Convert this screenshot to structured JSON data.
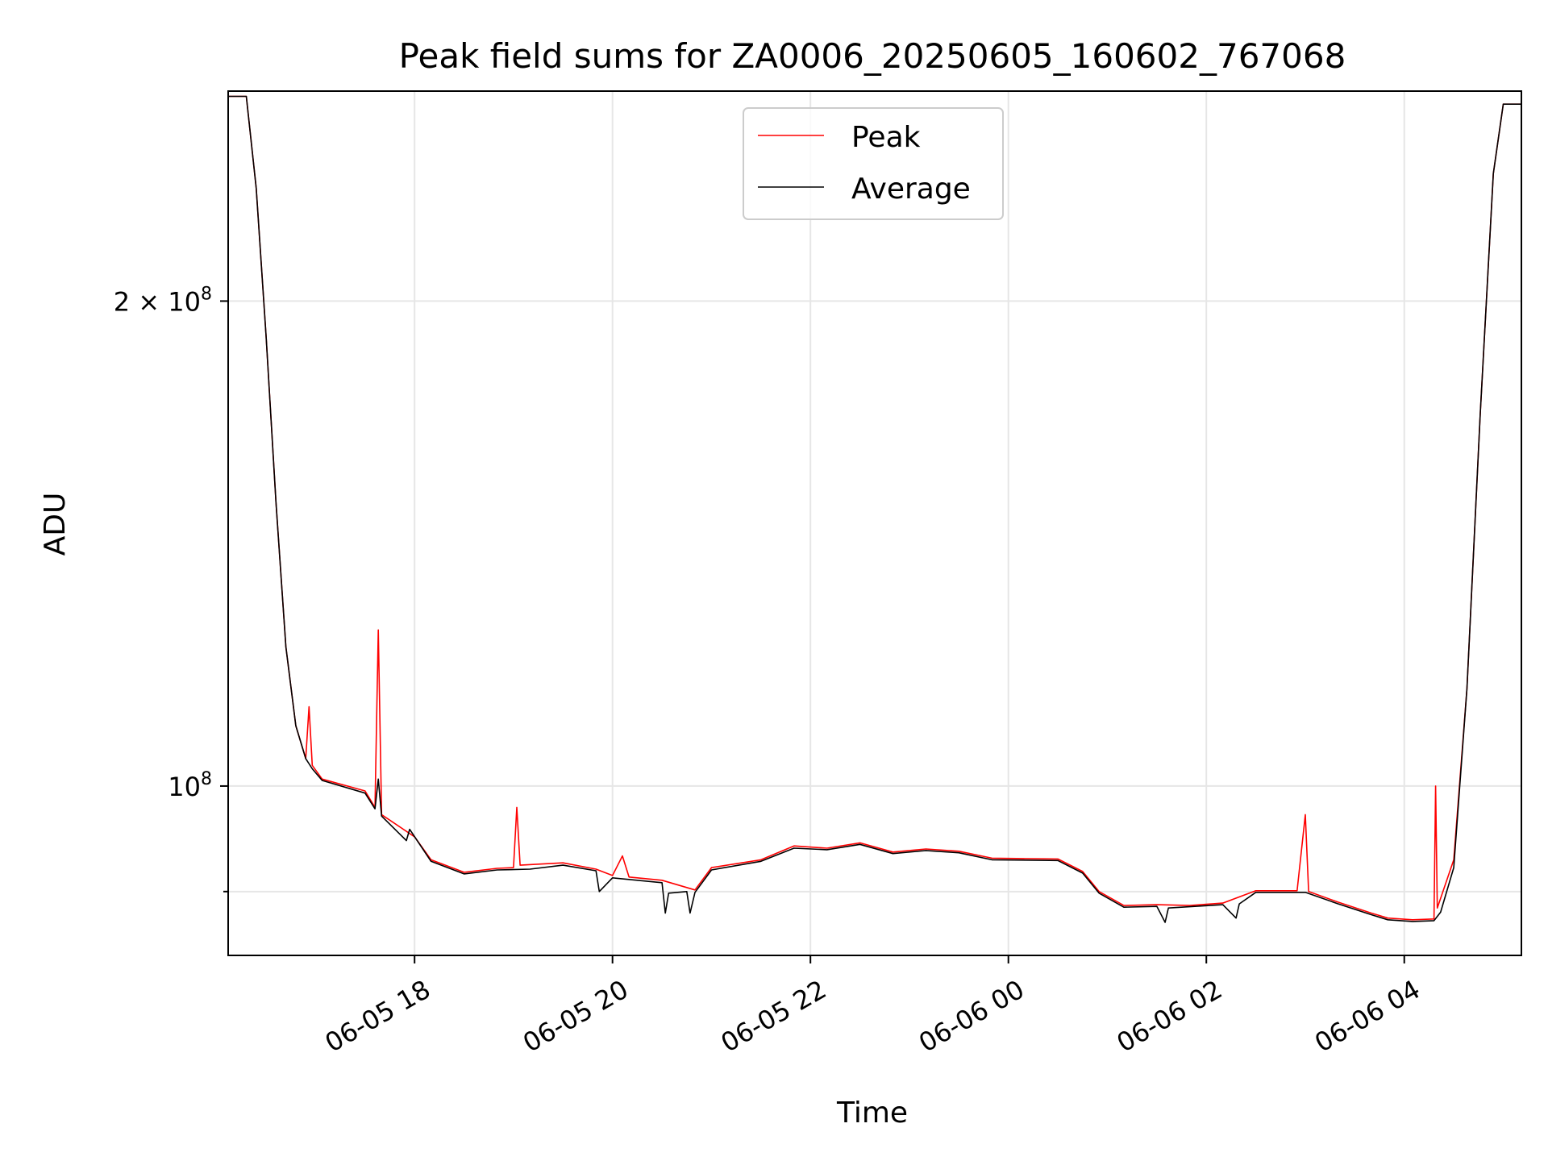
{
  "chart_data": {
    "type": "line",
    "title": "Peak field sums for ZA0006_20250605_160602_767068",
    "xlabel": "Time",
    "ylabel": "ADU",
    "y_scale": "log",
    "ylim": [
      78500000,
      270000000
    ],
    "xlim": [
      "2025-06-05 16:07",
      "2025-06-06 05:11"
    ],
    "grid": true,
    "legend_position": "upper-center",
    "x_ticks": [
      {
        "t": "2025-06-05 18:00",
        "label": "06-05 18"
      },
      {
        "t": "2025-06-05 20:00",
        "label": "06-05 20"
      },
      {
        "t": "2025-06-05 22:00",
        "label": "06-05 22"
      },
      {
        "t": "2025-06-06 00:00",
        "label": "06-06 00"
      },
      {
        "t": "2025-06-06 02:00",
        "label": "06-06 02"
      },
      {
        "t": "2025-06-06 04:00",
        "label": "06-06 04"
      }
    ],
    "y_ticks": [
      {
        "value": 200000000,
        "base": "2 × 10",
        "exp": "8"
      },
      {
        "value": 100000000,
        "base": "10",
        "exp": "8"
      },
      {
        "value": 86000000,
        "base": "",
        "exp": ""
      }
    ],
    "series": [
      {
        "name": "Peak",
        "color": "#ff0000",
        "points": [
          [
            "2025-06-05 16:07",
            268000000
          ],
          [
            "2025-06-05 16:18",
            268000000
          ],
          [
            "2025-06-05 16:24",
            235000000
          ],
          [
            "2025-06-05 16:30",
            190000000
          ],
          [
            "2025-06-05 16:36",
            150000000
          ],
          [
            "2025-06-05 16:42",
            122000000
          ],
          [
            "2025-06-05 16:48",
            109000000
          ],
          [
            "2025-06-05 16:54",
            104000000
          ],
          [
            "2025-06-05 16:56",
            112000000
          ],
          [
            "2025-06-05 16:58",
            103000000
          ],
          [
            "2025-06-05 17:04",
            101000000
          ],
          [
            "2025-06-05 17:30",
            99300000
          ],
          [
            "2025-06-05 17:36",
            97000000
          ],
          [
            "2025-06-05 17:38",
            125000000
          ],
          [
            "2025-06-05 17:40",
            96000000
          ],
          [
            "2025-06-05 18:00",
            93000000
          ],
          [
            "2025-06-05 18:10",
            90000000
          ],
          [
            "2025-06-05 18:30",
            88400000
          ],
          [
            "2025-06-05 18:50",
            88900000
          ],
          [
            "2025-06-05 19:00",
            89000000
          ],
          [
            "2025-06-05 19:02",
            97000000
          ],
          [
            "2025-06-05 19:04",
            89300000
          ],
          [
            "2025-06-05 19:30",
            89600000
          ],
          [
            "2025-06-05 19:50",
            88800000
          ],
          [
            "2025-06-05 20:00",
            88000000
          ],
          [
            "2025-06-05 20:06",
            90500000
          ],
          [
            "2025-06-05 20:10",
            87800000
          ],
          [
            "2025-06-05 20:30",
            87400000
          ],
          [
            "2025-06-05 20:50",
            86200000
          ],
          [
            "2025-06-05 21:00",
            89000000
          ],
          [
            "2025-06-05 21:30",
            90000000
          ],
          [
            "2025-06-05 21:50",
            91800000
          ],
          [
            "2025-06-05 22:10",
            91500000
          ],
          [
            "2025-06-05 22:30",
            92200000
          ],
          [
            "2025-06-05 22:50",
            91000000
          ],
          [
            "2025-06-05 23:10",
            91400000
          ],
          [
            "2025-06-05 23:30",
            91100000
          ],
          [
            "2025-06-05 23:50",
            90200000
          ],
          [
            "2025-06-06 00:30",
            90100000
          ],
          [
            "2025-06-06 00:45",
            88500000
          ],
          [
            "2025-06-06 00:55",
            86000000
          ],
          [
            "2025-06-06 01:10",
            84300000
          ],
          [
            "2025-06-06 01:30",
            84400000
          ],
          [
            "2025-06-06 01:50",
            84300000
          ],
          [
            "2025-06-06 02:10",
            84600000
          ],
          [
            "2025-06-06 02:30",
            86100000
          ],
          [
            "2025-06-06 02:55",
            86100000
          ],
          [
            "2025-06-06 03:00",
            96000000
          ],
          [
            "2025-06-06 03:02",
            86000000
          ],
          [
            "2025-06-06 03:20",
            84700000
          ],
          [
            "2025-06-06 03:40",
            83400000
          ],
          [
            "2025-06-06 03:50",
            82800000
          ],
          [
            "2025-06-06 04:05",
            82600000
          ],
          [
            "2025-06-06 04:18",
            82700000
          ],
          [
            "2025-06-06 04:19",
            100000000
          ],
          [
            "2025-06-06 04:20",
            84000000
          ],
          [
            "2025-06-06 04:30",
            90000000
          ],
          [
            "2025-06-06 04:38",
            115000000
          ],
          [
            "2025-06-06 04:46",
            170000000
          ],
          [
            "2025-06-06 04:54",
            240000000
          ],
          [
            "2025-06-06 05:00",
            265000000
          ],
          [
            "2025-06-06 05:11",
            265000000
          ]
        ]
      },
      {
        "name": "Average",
        "color": "#000000",
        "points": [
          [
            "2025-06-05 16:07",
            268000000
          ],
          [
            "2025-06-05 16:18",
            268000000
          ],
          [
            "2025-06-05 16:24",
            235000000
          ],
          [
            "2025-06-05 16:30",
            190000000
          ],
          [
            "2025-06-05 16:36",
            150000000
          ],
          [
            "2025-06-05 16:42",
            122000000
          ],
          [
            "2025-06-05 16:48",
            109000000
          ],
          [
            "2025-06-05 16:54",
            104000000
          ],
          [
            "2025-06-05 16:58",
            102500000
          ],
          [
            "2025-06-05 17:04",
            100800000
          ],
          [
            "2025-06-05 17:30",
            99000000
          ],
          [
            "2025-06-05 17:36",
            96800000
          ],
          [
            "2025-06-05 17:38",
            101000000
          ],
          [
            "2025-06-05 17:40",
            95800000
          ],
          [
            "2025-06-05 17:55",
            92500000
          ],
          [
            "2025-06-05 17:57",
            94000000
          ],
          [
            "2025-06-05 18:10",
            89800000
          ],
          [
            "2025-06-05 18:30",
            88200000
          ],
          [
            "2025-06-05 18:50",
            88700000
          ],
          [
            "2025-06-05 19:10",
            88800000
          ],
          [
            "2025-06-05 19:30",
            89300000
          ],
          [
            "2025-06-05 19:50",
            88600000
          ],
          [
            "2025-06-05 19:52",
            86000000
          ],
          [
            "2025-06-05 20:00",
            87700000
          ],
          [
            "2025-06-05 20:30",
            87100000
          ],
          [
            "2025-06-05 20:32",
            83400000
          ],
          [
            "2025-06-05 20:34",
            85800000
          ],
          [
            "2025-06-05 20:45",
            86000000
          ],
          [
            "2025-06-05 20:47",
            83400000
          ],
          [
            "2025-06-05 20:50",
            85900000
          ],
          [
            "2025-06-05 21:00",
            88700000
          ],
          [
            "2025-06-05 21:30",
            89800000
          ],
          [
            "2025-06-05 21:50",
            91500000
          ],
          [
            "2025-06-05 22:10",
            91300000
          ],
          [
            "2025-06-05 22:30",
            92000000
          ],
          [
            "2025-06-05 22:50",
            90800000
          ],
          [
            "2025-06-05 23:10",
            91200000
          ],
          [
            "2025-06-05 23:30",
            90900000
          ],
          [
            "2025-06-05 23:50",
            90000000
          ],
          [
            "2025-06-06 00:30",
            89900000
          ],
          [
            "2025-06-06 00:45",
            88300000
          ],
          [
            "2025-06-06 00:55",
            85800000
          ],
          [
            "2025-06-06 01:10",
            84100000
          ],
          [
            "2025-06-06 01:30",
            84200000
          ],
          [
            "2025-06-06 01:35",
            82300000
          ],
          [
            "2025-06-06 01:37",
            84000000
          ],
          [
            "2025-06-06 02:10",
            84400000
          ],
          [
            "2025-06-06 02:18",
            82800000
          ],
          [
            "2025-06-06 02:20",
            84500000
          ],
          [
            "2025-06-06 02:30",
            85900000
          ],
          [
            "2025-06-06 03:00",
            85900000
          ],
          [
            "2025-06-06 03:20",
            84500000
          ],
          [
            "2025-06-06 03:40",
            83200000
          ],
          [
            "2025-06-06 03:50",
            82600000
          ],
          [
            "2025-06-06 04:05",
            82400000
          ],
          [
            "2025-06-06 04:18",
            82500000
          ],
          [
            "2025-06-06 04:22",
            83500000
          ],
          [
            "2025-06-06 04:30",
            89000000
          ],
          [
            "2025-06-06 04:38",
            115000000
          ],
          [
            "2025-06-06 04:46",
            170000000
          ],
          [
            "2025-06-06 04:54",
            240000000
          ],
          [
            "2025-06-06 05:00",
            265000000
          ],
          [
            "2025-06-06 05:11",
            265000000
          ]
        ]
      }
    ]
  }
}
